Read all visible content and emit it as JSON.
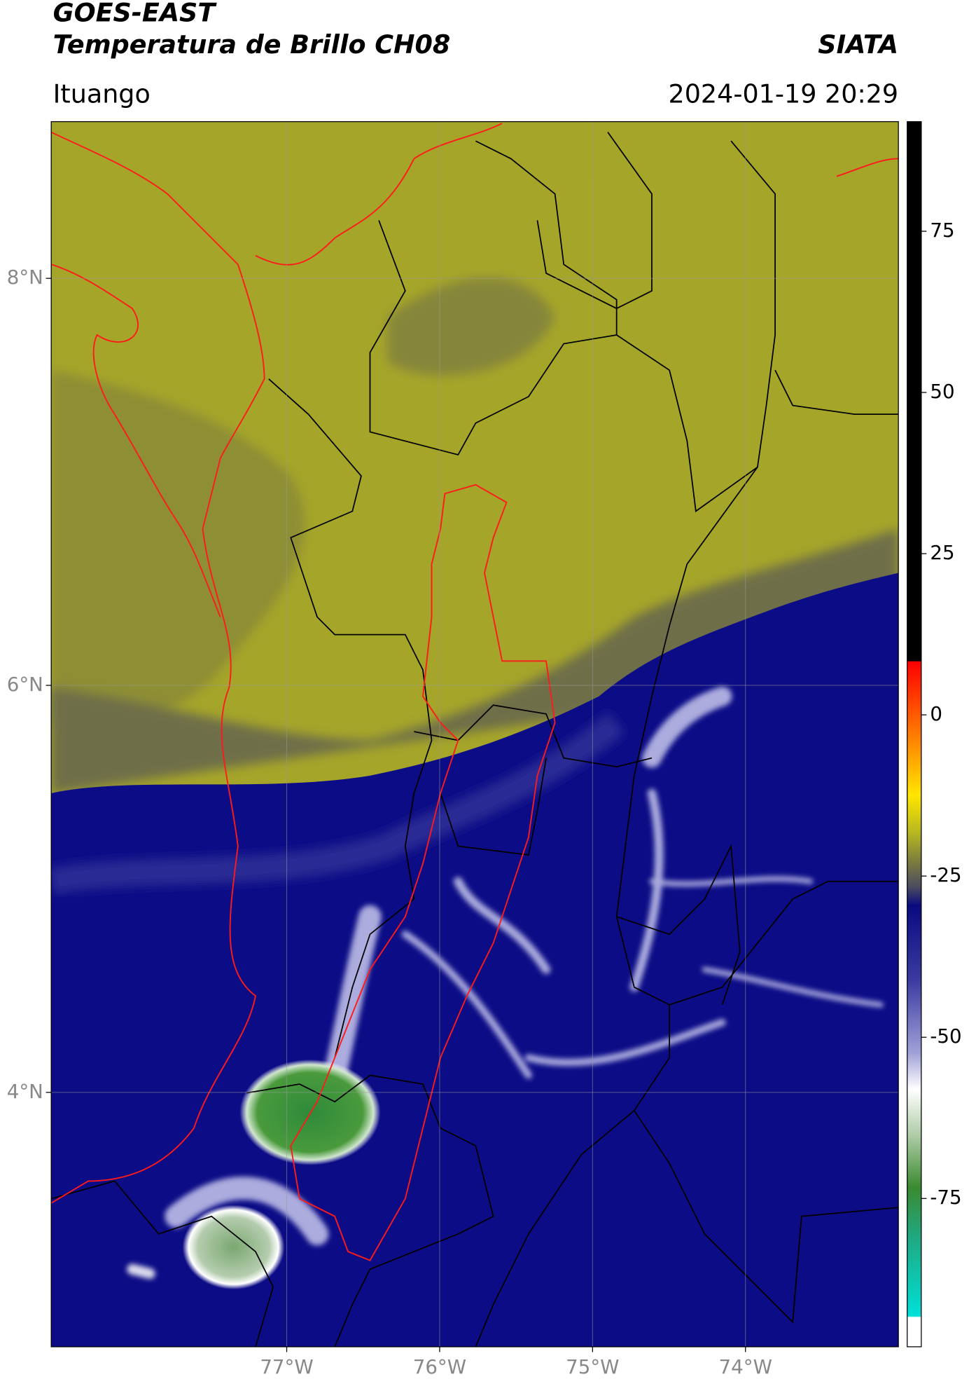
{
  "header": {
    "title": "GOES-EAST",
    "subtitle": "Temperatura de Brillo CH08",
    "source": "SIATA",
    "location": "Ituango",
    "datetime": "2024-01-19 20:29"
  },
  "map": {
    "xlim": [
      -78.54,
      -73.0
    ],
    "ylim": [
      2.75,
      8.77
    ],
    "xticks": [
      {
        "value": -77,
        "label": "77°W"
      },
      {
        "value": -76,
        "label": "76°W"
      },
      {
        "value": -75,
        "label": "75°W"
      },
      {
        "value": -74,
        "label": "74°W"
      }
    ],
    "yticks": [
      {
        "value": 8,
        "label": "8°N"
      },
      {
        "value": 6,
        "label": "6°N"
      },
      {
        "value": 4,
        "label": "4°N"
      }
    ],
    "grid": true
  },
  "colorbar": {
    "lim": [
      -98,
      92
    ],
    "ticks": [
      75,
      50,
      25,
      0,
      -25,
      -50,
      -75
    ]
  }
}
